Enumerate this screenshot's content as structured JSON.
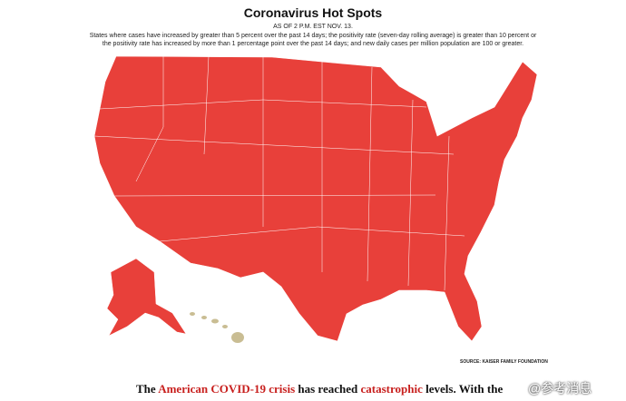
{
  "header": {
    "title": "Coronavirus Hot Spots",
    "subtitle": "AS OF 2 P.M. EST NOV. 13.",
    "description": "States where cases have increased by greater than 5 percent over the past 14 days; the positivity rate (seven-day rolling average) is greater than 10 percent or the positivity rate has increased by more than 1 percentage point over the past 14 days; and new daily cases per million population are 100 or greater."
  },
  "source": "SOURCE: KAISER FAMILY FOUNDATION",
  "caption": [
    "The",
    "American COVID-19 crisis",
    "has reached",
    "catastrophic",
    "levels. With the"
  ],
  "watermark": "@参考消息"
}
